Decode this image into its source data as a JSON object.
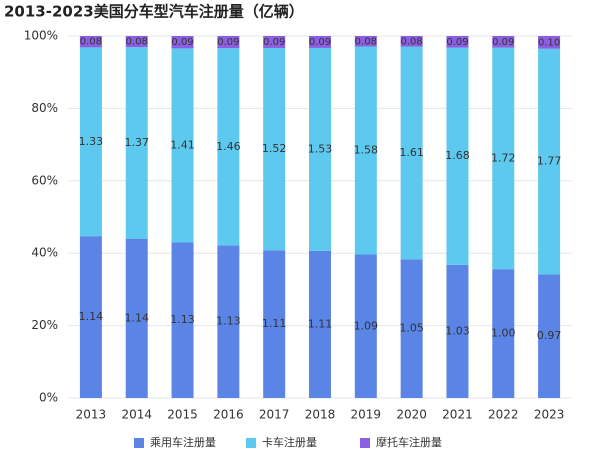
{
  "chart_data": {
    "type": "bar",
    "stacked": "percent",
    "title": "2013-2023美国分车型汽车注册量（亿辆）",
    "categories": [
      "2013",
      "2014",
      "2015",
      "2016",
      "2017",
      "2018",
      "2019",
      "2020",
      "2021",
      "2022",
      "2023"
    ],
    "series": [
      {
        "name": "乘用车注册量",
        "color": "#5a85e6",
        "label_color": "#ffffff",
        "values": [
          1.14,
          1.14,
          1.13,
          1.13,
          1.11,
          1.11,
          1.09,
          1.05,
          1.03,
          1.0,
          0.97
        ],
        "value_labels": [
          "1.14",
          "1.14",
          "1.13",
          "1.13",
          "1.11",
          "1.11",
          "1.09",
          "1.05",
          "1.03",
          "1.00",
          "0.97"
        ]
      },
      {
        "name": "卡车注册量",
        "color": "#5ec9ef",
        "label_color": "#222222",
        "values": [
          1.33,
          1.37,
          1.41,
          1.46,
          1.52,
          1.53,
          1.58,
          1.61,
          1.68,
          1.72,
          1.77
        ],
        "value_labels": [
          "1.33",
          "1.37",
          "1.41",
          "1.46",
          "1.52",
          "1.53",
          "1.58",
          "1.61",
          "1.68",
          "1.72",
          "1.77"
        ]
      },
      {
        "name": "摩托车注册量",
        "color": "#8c5fe0",
        "label_color": "#ffffff",
        "values": [
          0.08,
          0.08,
          0.09,
          0.09,
          0.09,
          0.09,
          0.08,
          0.08,
          0.09,
          0.09,
          0.1
        ],
        "value_labels": [
          "0.08",
          "0.08",
          "0.09",
          "0.09",
          "0.09",
          "0.09",
          "0.08",
          "0.08",
          "0.09",
          "0.09",
          "0.10"
        ]
      }
    ],
    "ylim": [
      0,
      100
    ],
    "yticks": [
      {
        "value": 0,
        "label": "0%"
      },
      {
        "value": 20,
        "label": "20%"
      },
      {
        "value": 40,
        "label": "40%"
      },
      {
        "value": 60,
        "label": "60%"
      },
      {
        "value": 80,
        "label": "80%"
      },
      {
        "value": 100,
        "label": "100%"
      }
    ],
    "grid": true,
    "legend": "bottom"
  }
}
